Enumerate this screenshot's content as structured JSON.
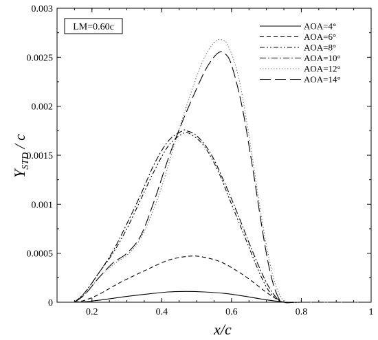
{
  "chart_data": {
    "type": "line",
    "title": "",
    "xlabel": "x/c",
    "ylabel": "Y_STD / c",
    "ylabel_main": "Y",
    "ylabel_sub": "STD",
    "ylabel_rest": " / c",
    "annotation": "LM=0.60c",
    "xlim": [
      0.1,
      1.0
    ],
    "ylim": [
      0,
      0.003
    ],
    "x_ticks": [
      0.2,
      0.4,
      0.6,
      0.8,
      1.0
    ],
    "x_tick_labels": [
      "0.2",
      "0.4",
      "0.6",
      "0.8",
      "1"
    ],
    "y_ticks": [
      0,
      0.0005,
      0.001,
      0.0015,
      0.002,
      0.0025,
      0.003
    ],
    "y_tick_labels": [
      "0",
      "0.0005",
      "0.001",
      "0.0015",
      "0.002",
      "0.0025",
      "0.003"
    ],
    "grid": false,
    "legend_position": "top-right",
    "series": [
      {
        "name": "AOA=4°",
        "dash": "solid",
        "x": [
          0.15,
          0.18,
          0.22,
          0.28,
          0.35,
          0.42,
          0.47,
          0.52,
          0.58,
          0.64,
          0.69,
          0.72,
          0.745,
          0.75,
          0.8,
          1.0
        ],
        "y": [
          0,
          5e-06,
          2e-05,
          5e-05,
          8e-05,
          0.000105,
          0.00011,
          0.000105,
          9e-05,
          6e-05,
          3e-05,
          1.5e-05,
          5e-06,
          0,
          0,
          0
        ]
      },
      {
        "name": "AOA=6°",
        "dash": "6,4",
        "x": [
          0.15,
          0.18,
          0.22,
          0.28,
          0.35,
          0.42,
          0.48,
          0.52,
          0.57,
          0.62,
          0.66,
          0.7,
          0.73,
          0.75,
          0.8,
          1.0
        ],
        "y": [
          0,
          2e-05,
          8e-05,
          0.0002,
          0.00032,
          0.00043,
          0.00047,
          0.00046,
          0.00041,
          0.00031,
          0.00021,
          0.0001,
          3e-05,
          0,
          0,
          0
        ]
      },
      {
        "name": "AOA=8°",
        "dash": "7,3,2,3,2,3",
        "x": [
          0.15,
          0.18,
          0.22,
          0.26,
          0.3,
          0.34,
          0.38,
          0.42,
          0.46,
          0.48,
          0.52,
          0.56,
          0.6,
          0.64,
          0.68,
          0.71,
          0.74,
          0.75,
          0.8,
          1.0
        ],
        "y": [
          0,
          0.0001,
          0.0003,
          0.0005,
          0.00075,
          0.00105,
          0.00135,
          0.0016,
          0.00172,
          0.00172,
          0.0016,
          0.00135,
          0.001,
          0.00065,
          0.0003,
          0.0001,
          1.5e-05,
          0,
          0,
          0
        ]
      },
      {
        "name": "AOA=10°",
        "dash": "9,3,2,3",
        "x": [
          0.15,
          0.18,
          0.22,
          0.26,
          0.3,
          0.34,
          0.38,
          0.42,
          0.46,
          0.47,
          0.5,
          0.54,
          0.58,
          0.62,
          0.66,
          0.7,
          0.73,
          0.75,
          0.8,
          1.0
        ],
        "y": [
          0,
          0.0001,
          0.0003,
          0.00052,
          0.0008,
          0.0011,
          0.00142,
          0.00165,
          0.00175,
          0.00175,
          0.0017,
          0.00152,
          0.00122,
          0.00088,
          0.00052,
          0.0002,
          4e-05,
          0,
          0,
          0
        ]
      },
      {
        "name": "AOA=12°",
        "dash": "1.5,2.5",
        "color": "#777777",
        "x": [
          0.15,
          0.18,
          0.22,
          0.26,
          0.3,
          0.33,
          0.36,
          0.4,
          0.44,
          0.48,
          0.52,
          0.55,
          0.57,
          0.59,
          0.62,
          0.65,
          0.68,
          0.7,
          0.72,
          0.74,
          0.76,
          0.8,
          1.0
        ],
        "y": [
          0,
          8e-05,
          0.00025,
          0.00038,
          0.00048,
          0.0006,
          0.0008,
          0.00118,
          0.00165,
          0.0021,
          0.00248,
          0.00265,
          0.00268,
          0.00262,
          0.0023,
          0.0017,
          0.001,
          0.00058,
          0.00025,
          6e-05,
          0,
          0,
          1e-10
        ]
      },
      {
        "name": "AOA=14°",
        "dash": "16,6",
        "x": [
          0.15,
          0.18,
          0.22,
          0.26,
          0.3,
          0.34,
          0.38,
          0.42,
          0.46,
          0.5,
          0.53,
          0.56,
          0.58,
          0.6,
          0.63,
          0.66,
          0.69,
          0.71,
          0.73,
          0.75,
          0.8,
          1.0
        ],
        "y": [
          0,
          8e-05,
          0.00025,
          0.0004,
          0.0005,
          0.00068,
          0.00105,
          0.00148,
          0.00185,
          0.00218,
          0.0024,
          0.00254,
          0.00254,
          0.00242,
          0.002,
          0.00138,
          0.0007,
          0.00032,
          8e-05,
          0,
          0,
          0
        ]
      }
    ]
  }
}
